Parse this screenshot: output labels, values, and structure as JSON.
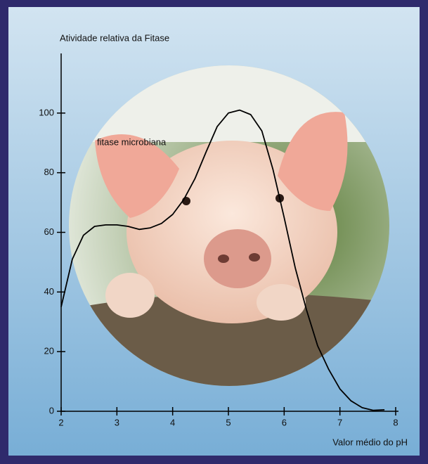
{
  "chart_data": {
    "type": "line",
    "title": "Atividade relativa da Fitase",
    "annotation": "fitase microbiana",
    "x_label": "Valor médio do pH",
    "x": [
      2.0,
      2.2,
      2.4,
      2.6,
      2.8,
      3.0,
      3.2,
      3.4,
      3.6,
      3.8,
      4.0,
      4.2,
      4.4,
      4.6,
      4.8,
      5.0,
      5.2,
      5.4,
      5.6,
      5.8,
      6.0,
      6.2,
      6.4,
      6.6,
      6.8,
      7.0,
      7.2,
      7.4,
      7.6,
      7.8
    ],
    "values": [
      35,
      51,
      59,
      62,
      62.5,
      62.5,
      62,
      61,
      61.5,
      63,
      66,
      71,
      78,
      87,
      95.5,
      100,
      101,
      99.5,
      94,
      81,
      65,
      48,
      34,
      22,
      14,
      7.5,
      3.5,
      1.2,
      0.3,
      0.5
    ],
    "color": "#000000",
    "xlim": [
      2,
      8
    ],
    "xticks": [
      2,
      3,
      4,
      5,
      6,
      7,
      8
    ],
    "ylim": [
      0,
      120
    ],
    "yticks": [
      0,
      20,
      40,
      60,
      80,
      100
    ]
  }
}
